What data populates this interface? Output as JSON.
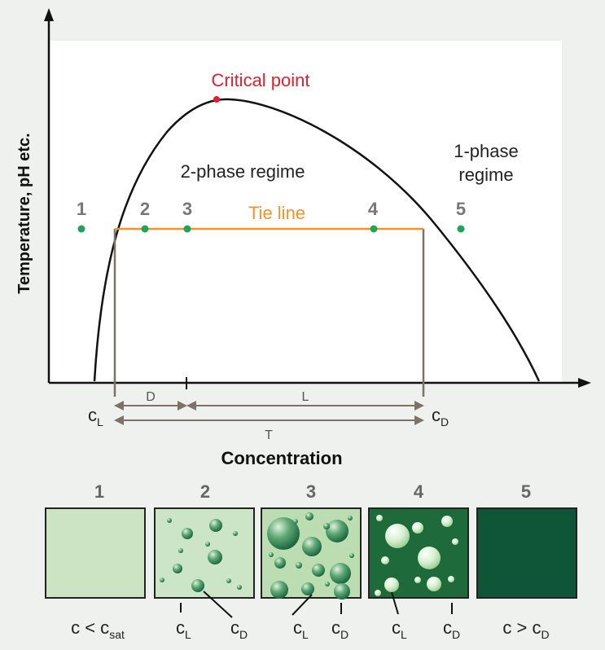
{
  "diagram": {
    "y_axis_label": "Temperature, pH etc.",
    "x_axis_label": "Concentration",
    "critical_point_label": "Critical point",
    "two_phase_label": "2-phase regime",
    "one_phase_label_line1": "1-phase",
    "one_phase_label_line2": "regime",
    "tie_line_label": "Tie line",
    "points": [
      "1",
      "2",
      "3",
      "4",
      "5"
    ],
    "markers": {
      "cL_main": "c",
      "cL_sub": "L",
      "cD_main": "c",
      "cD_sub": "D",
      "D": "D",
      "L": "L",
      "T": "T"
    },
    "colors": {
      "critical_point": "#e0202e",
      "tie_line": "#f0922e",
      "state_points": "#22a35a",
      "number_labels": "#777777",
      "curve": "#111111",
      "guides": "#7d7168"
    }
  },
  "panels": [
    {
      "number": "1",
      "fill": "#cce4c4",
      "caption_main": "c < c",
      "caption_sub": "sat"
    },
    {
      "number": "2",
      "fill": "#cbe5c6",
      "label_left_main": "c",
      "label_left_sub": "L",
      "label_right_main": "c",
      "label_right_sub": "D"
    },
    {
      "number": "3",
      "fill": "#bcdcb2",
      "label_left_main": "c",
      "label_left_sub": "L",
      "label_right_main": "c",
      "label_right_sub": "D"
    },
    {
      "number": "4",
      "fill": "#1f6a3b",
      "label_left_main": "c",
      "label_left_sub": "L",
      "label_right_main": "c",
      "label_right_sub": "D"
    },
    {
      "number": "5",
      "fill": "#0f5538",
      "caption_main": "c > c",
      "caption_sub": "D"
    }
  ]
}
